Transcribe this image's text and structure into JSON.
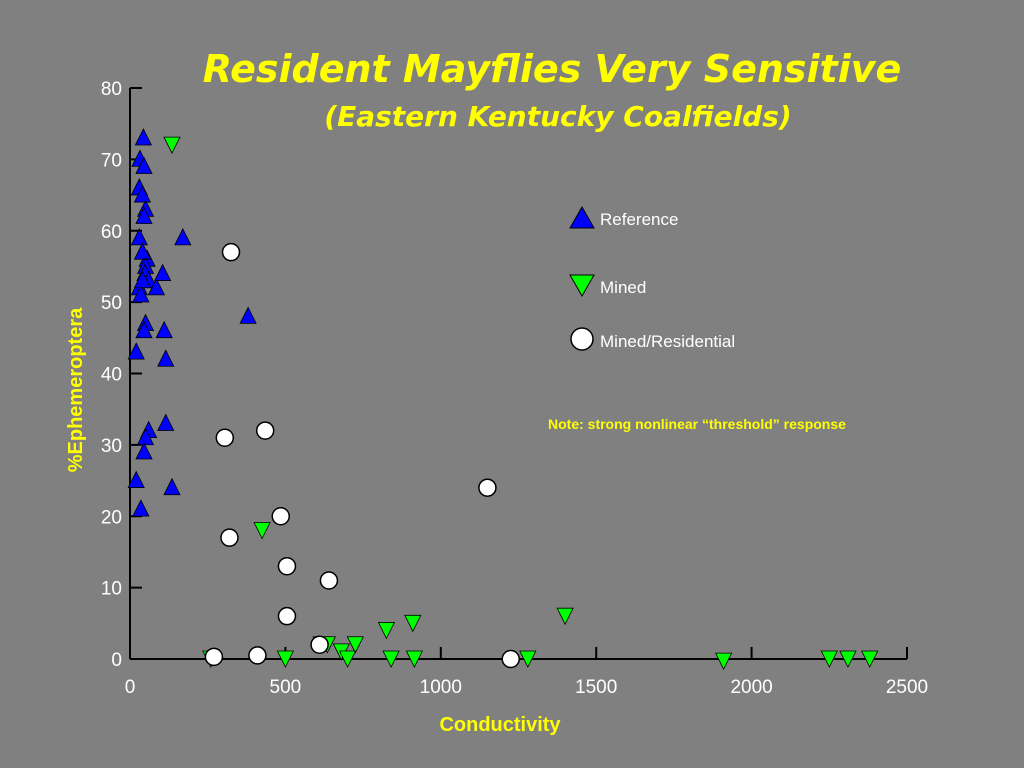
{
  "chart_data": {
    "type": "scatter",
    "title": "Resident Mayflies Very Sensitive",
    "subtitle": "(Eastern Kentucky Coalfields)",
    "xlabel": "Conductivity",
    "ylabel": "%Ephemeroptera",
    "xlim": [
      0,
      2500
    ],
    "ylim": [
      0,
      80
    ],
    "xticks": [
      "0",
      "500",
      "1000",
      "1500",
      "2000",
      "2500"
    ],
    "yticks": [
      "0",
      "10",
      "20",
      "30",
      "40",
      "50",
      "60",
      "70",
      "80"
    ],
    "grid": false,
    "legend_position": "right",
    "note": "Note: strong nonlinear “threshold” response",
    "series": [
      {
        "name": "Reference",
        "marker": "triangle-up",
        "color": "#0000ff",
        "x": [
          43,
          32,
          45,
          30,
          40,
          50,
          30,
          45,
          55,
          40,
          50,
          48,
          60,
          85,
          30,
          35,
          40,
          105,
          110,
          50,
          45,
          20,
          115,
          380,
          170,
          115,
          60,
          50,
          45,
          20,
          35,
          135
        ],
        "y": [
          73,
          70,
          69,
          66,
          65,
          63,
          59,
          62,
          56,
          57,
          55,
          54,
          53,
          52,
          52,
          51,
          53,
          54,
          46,
          47,
          46,
          43,
          42,
          48,
          59,
          33,
          32,
          31,
          29,
          25,
          21,
          24
        ]
      },
      {
        "name": "Mined",
        "marker": "triangle-down",
        "color": "#00ff00",
        "x": [
          135,
          425,
          910,
          825,
          615,
          635,
          725,
          680,
          700,
          840,
          915,
          500,
          1400,
          1280,
          1910,
          2250,
          2310,
          2380,
          260
        ],
        "y": [
          72,
          18,
          5,
          4,
          2,
          2,
          2,
          1,
          0,
          0,
          0,
          0,
          6,
          0,
          -0.3,
          0,
          0,
          0,
          0
        ]
      },
      {
        "name": "Mined/Residential",
        "marker": "circle",
        "color": "#ffffff",
        "x": [
          325,
          305,
          435,
          1150,
          485,
          320,
          505,
          640,
          505,
          610,
          410,
          270,
          1225
        ],
        "y": [
          57,
          31,
          32,
          24,
          20,
          17,
          13,
          11,
          6,
          2,
          0.5,
          0.3,
          0
        ]
      }
    ]
  }
}
